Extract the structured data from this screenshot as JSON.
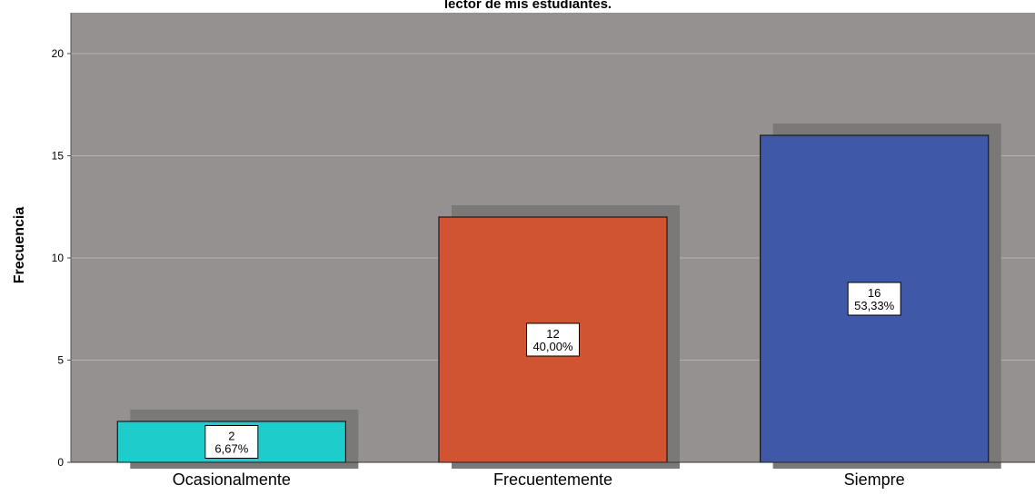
{
  "chart_data": {
    "type": "bar",
    "title": "lector de mis estudiantes.",
    "xlabel": "",
    "ylabel": "Frecuencia",
    "ylim": [
      0,
      22
    ],
    "yticks": [
      0,
      5,
      10,
      15,
      20
    ],
    "grid": true,
    "legend": "none",
    "categories": [
      "Ocasionalmente",
      "Frecuentemente",
      "Siempre"
    ],
    "values": [
      2,
      12,
      16
    ],
    "value_labels": [
      "2",
      "12",
      "16"
    ],
    "percent_labels": [
      "6,67%",
      "40,00%",
      "53,33%"
    ],
    "colors": [
      "#1FCCCC",
      "#D05432",
      "#3F59A8"
    ],
    "plot_background": "#959190",
    "shadow_color": "#7B7978",
    "grid_color": "#B5B2B1"
  }
}
